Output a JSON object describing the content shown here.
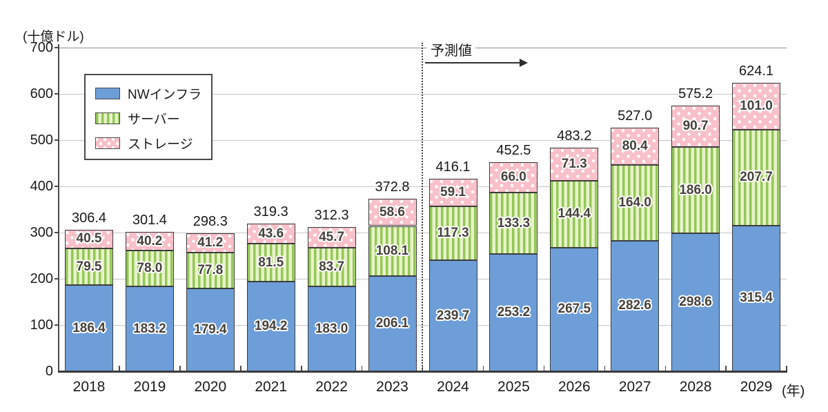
{
  "chart_data": {
    "type": "bar",
    "stacked": true,
    "title": "",
    "ylabel": "(十億ドル)",
    "xlabel": "(年)",
    "ylim": [
      0,
      700
    ],
    "ytick_step": 100,
    "grid": true,
    "legend_position": "upper-left-inside",
    "categories": [
      "2018",
      "2019",
      "2020",
      "2021",
      "2022",
      "2023",
      "2024",
      "2025",
      "2026",
      "2027",
      "2028",
      "2029"
    ],
    "series": [
      {
        "name": "NWインフラ",
        "pattern": "solid",
        "color": "#6d9ed7",
        "values": [
          186.4,
          183.2,
          179.4,
          194.2,
          183.0,
          206.1,
          239.7,
          253.2,
          267.5,
          282.6,
          298.6,
          315.4
        ]
      },
      {
        "name": "サーバー",
        "pattern": "vstripes",
        "color": "#94c756",
        "values": [
          79.5,
          78.0,
          77.8,
          81.5,
          83.7,
          108.1,
          117.3,
          133.3,
          144.4,
          164.0,
          186.0,
          207.7
        ]
      },
      {
        "name": "ストレージ",
        "pattern": "dots",
        "color": "#f8c0c9",
        "values": [
          40.5,
          40.2,
          41.2,
          43.6,
          45.7,
          58.6,
          59.1,
          66.0,
          71.3,
          80.4,
          90.7,
          101.0
        ]
      }
    ],
    "totals": [
      306.4,
      301.4,
      298.3,
      319.3,
      312.3,
      372.8,
      416.1,
      452.5,
      483.2,
      527.0,
      575.2,
      624.1
    ],
    "forecast": {
      "label": "予測値",
      "from_category": "2024"
    }
  },
  "colors": {
    "bar_blue": "#6d9ed7",
    "bar_green_stripe": "#94c756",
    "bar_green_base": "#e7f3ca",
    "bar_pink": "#f8c0c9",
    "gridline": "#c6c6c6",
    "axis": "#3a3a3a"
  }
}
